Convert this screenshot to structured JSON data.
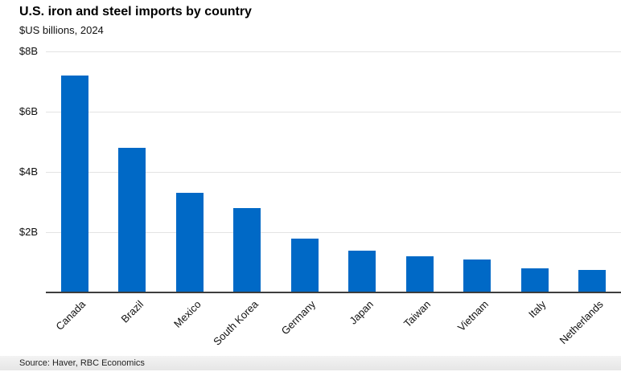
{
  "header": {
    "title": "U.S. iron and steel imports by country",
    "subtitle": "$US billions, 2024"
  },
  "footer": {
    "source": "Source: Haver, RBC Economics"
  },
  "colors": {
    "bar": "#0069c6",
    "gridline": "#e3e3e3",
    "baseline": "#3d3d3d",
    "footer_bg": "#ebebeb",
    "text": "#111111"
  },
  "chart_data": {
    "type": "bar",
    "title": "U.S. iron and steel imports by country",
    "subtitle": "$US billions, 2024",
    "categories": [
      "Canada",
      "Brazil",
      "Mexico",
      "South Korea",
      "Germany",
      "Japan",
      "Taiwan",
      "Vietnam",
      "Italy",
      "Netherlands"
    ],
    "values": [
      7.2,
      4.8,
      3.3,
      2.8,
      1.8,
      1.4,
      1.2,
      1.1,
      0.8,
      0.75
    ],
    "xlabel": "",
    "ylabel": "$US billions",
    "ylim": [
      0,
      8
    ],
    "yticks": [
      2,
      4,
      6,
      8
    ],
    "ytick_labels": [
      "$2B",
      "$4B",
      "$6B",
      "$8B"
    ],
    "grid": true,
    "legend": false,
    "bar_color": "#0069c6"
  }
}
